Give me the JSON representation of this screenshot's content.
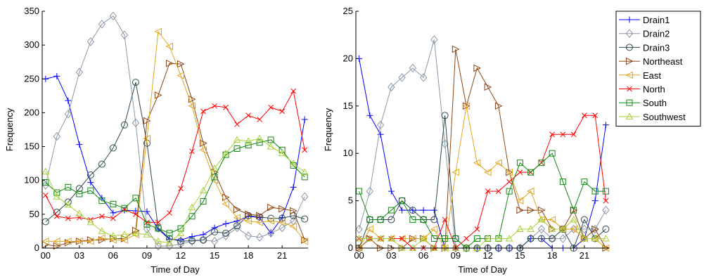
{
  "chart_data": [
    {
      "type": "line",
      "xlabel": "Time of Day",
      "ylabel": "Frequency",
      "x": [
        0,
        1,
        2,
        3,
        4,
        5,
        6,
        7,
        8,
        9,
        10,
        11,
        12,
        13,
        14,
        15,
        16,
        17,
        18,
        19,
        20,
        21,
        22,
        23
      ],
      "xticks": [
        0,
        3,
        6,
        9,
        12,
        15,
        18,
        21
      ],
      "xtick_labels": [
        "00",
        "03",
        "06",
        "09",
        "12",
        "15",
        "18",
        "21"
      ],
      "xlim": [
        -0.3,
        23.3
      ],
      "ylim": [
        0,
        350
      ],
      "yticks": [
        0,
        50,
        100,
        150,
        200,
        250,
        300,
        350
      ],
      "ytick_labels": [
        "0",
        "50",
        "100",
        "150",
        "200",
        "250",
        "300",
        "350"
      ],
      "series": [
        {
          "name": "Drain1",
          "values": [
            250,
            254,
            218,
            153,
            97,
            74,
            52,
            56,
            55,
            54,
            28,
            13,
            12,
            17,
            20,
            30,
            36,
            40,
            47,
            45,
            22,
            45,
            90,
            190
          ]
        },
        {
          "name": "Drain2",
          "values": [
            93,
            165,
            198,
            260,
            305,
            331,
            343,
            315,
            185,
            28,
            3,
            3,
            6,
            10,
            12,
            10,
            18,
            30,
            18,
            16,
            22,
            30,
            40,
            76
          ]
        },
        {
          "name": "Drain3",
          "values": [
            39,
            53,
            68,
            88,
            108,
            124,
            148,
            182,
            245,
            155,
            30,
            14,
            10,
            11,
            12,
            24,
            22,
            33,
            48,
            46,
            44,
            44,
            48,
            43
          ]
        },
        {
          "name": "Northeast",
          "values": [
            5,
            3,
            8,
            10,
            12,
            12,
            14,
            14,
            26,
            188,
            226,
            273,
            272,
            220,
            155,
            112,
            75,
            57,
            50,
            48,
            60,
            58,
            55,
            12
          ]
        },
        {
          "name": "East",
          "values": [
            10,
            10,
            10,
            10,
            10,
            15,
            12,
            12,
            20,
            162,
            320,
            298,
            255,
            210,
            145,
            100,
            65,
            45,
            40,
            38,
            40,
            38,
            32,
            10
          ]
        },
        {
          "name": "North",
          "values": [
            78,
            47,
            44,
            45,
            42,
            47,
            44,
            57,
            50,
            38,
            38,
            52,
            88,
            143,
            202,
            210,
            208,
            183,
            196,
            190,
            208,
            202,
            232,
            145
          ]
        },
        {
          "name": "South",
          "values": [
            97,
            82,
            90,
            80,
            85,
            70,
            65,
            59,
            74,
            35,
            29,
            22,
            29,
            47,
            69,
            105,
            138,
            147,
            152,
            156,
            160,
            145,
            122,
            105
          ]
        },
        {
          "name": "Southwest",
          "values": [
            113,
            76,
            64,
            51,
            38,
            25,
            18,
            20,
            22,
            20,
            10,
            8,
            22,
            60,
            85,
            118,
            140,
            160,
            158,
            162,
            150,
            140,
            125,
            112
          ]
        }
      ]
    },
    {
      "type": "line",
      "xlabel": "Time of Day",
      "ylabel": "Frequency",
      "x": [
        0,
        1,
        2,
        3,
        4,
        5,
        6,
        7,
        8,
        9,
        10,
        11,
        12,
        13,
        14,
        15,
        16,
        17,
        18,
        19,
        20,
        21,
        22,
        23
      ],
      "xticks": [
        0,
        3,
        6,
        9,
        12,
        15,
        18,
        21
      ],
      "xtick_labels": [
        "00",
        "03",
        "06",
        "09",
        "12",
        "15",
        "18",
        "21"
      ],
      "xlim": [
        -0.3,
        23.3
      ],
      "ylim": [
        0,
        25
      ],
      "yticks": [
        0,
        5,
        10,
        15,
        20,
        25
      ],
      "ytick_labels": [
        "0",
        "5",
        "10",
        "15",
        "20",
        "25"
      ],
      "legend_position": "outside-right",
      "series": [
        {
          "name": "Drain1",
          "values": [
            20,
            14,
            12,
            6,
            4,
            4,
            4,
            4,
            0,
            0,
            0,
            0,
            0,
            0,
            0,
            0,
            1,
            1,
            0,
            0,
            0,
            1,
            5,
            13
          ]
        },
        {
          "name": "Drain2",
          "values": [
            2,
            6,
            13,
            17,
            18,
            19,
            18,
            22,
            11,
            0,
            0,
            0,
            0,
            0,
            0,
            0,
            1,
            2,
            1,
            1,
            2,
            2,
            2,
            4
          ]
        },
        {
          "name": "Drain3",
          "values": [
            0,
            3,
            3,
            3,
            5,
            4,
            3,
            3,
            14,
            1,
            0,
            0,
            0,
            0,
            0,
            0,
            1,
            1,
            1,
            2,
            0,
            3,
            1,
            2
          ]
        },
        {
          "name": "Northeast",
          "values": [
            0,
            1,
            0,
            0,
            0,
            1,
            1,
            0,
            0,
            21,
            15,
            19,
            17,
            15,
            8,
            4,
            4,
            4,
            2,
            2,
            4,
            1,
            2,
            0
          ]
        },
        {
          "name": "East",
          "values": [
            0,
            2,
            1,
            1,
            1,
            1,
            1,
            2,
            0,
            8,
            15,
            9,
            8,
            9,
            8,
            5,
            6,
            3,
            3,
            2,
            2,
            1,
            1,
            0
          ]
        },
        {
          "name": "North",
          "values": [
            1,
            1,
            1,
            1,
            1,
            0,
            0,
            0,
            3,
            0,
            1,
            2,
            6,
            6,
            7,
            8,
            8,
            9,
            12,
            12,
            12,
            14,
            14,
            5
          ]
        },
        {
          "name": "South",
          "values": [
            6,
            3,
            3,
            4,
            5,
            3,
            3,
            1,
            1,
            1,
            0,
            1,
            1,
            1,
            6,
            9,
            8,
            9,
            10,
            7,
            4,
            7,
            6,
            6
          ]
        },
        {
          "name": "Southwest",
          "values": [
            1,
            1,
            1,
            1,
            0,
            0,
            1,
            0,
            0,
            0,
            0,
            0,
            1,
            1,
            1,
            2,
            2,
            3,
            2,
            2,
            3,
            1,
            1,
            1
          ]
        }
      ]
    }
  ],
  "styles": {
    "Drain1": {
      "color": "#0000ff",
      "marker": "plus"
    },
    "Drain2": {
      "color": "#8b98a8",
      "marker": "diamond"
    },
    "Drain3": {
      "color": "#2e4a4e",
      "marker": "circle"
    },
    "Northeast": {
      "color": "#8b4513",
      "marker": "triangle-right"
    },
    "East": {
      "color": "#e1a720",
      "marker": "triangle-left"
    },
    "North": {
      "color": "#ff0000",
      "marker": "x"
    },
    "South": {
      "color": "#118811",
      "marker": "square"
    },
    "Southwest": {
      "color": "#a8d13a",
      "marker": "triangle-up"
    }
  }
}
